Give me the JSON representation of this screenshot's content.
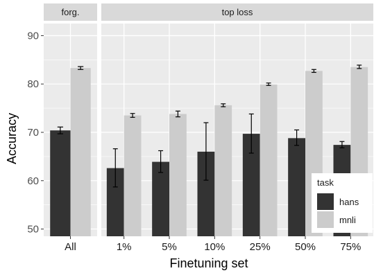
{
  "chart_data": {
    "type": "bar",
    "xlabel": "Finetuning set",
    "ylabel": "Accuracy",
    "ylim": [
      48.5,
      92.5
    ],
    "yticks": [
      50,
      60,
      70,
      80,
      90
    ],
    "grid": true,
    "legend": {
      "title": "task",
      "placement": "bottom-right",
      "entries": [
        {
          "name": "hans",
          "color": "#333333"
        },
        {
          "name": "mnli",
          "color": "#cccccc"
        }
      ]
    },
    "facets": [
      {
        "label": "forg.",
        "categories": [
          "All"
        ],
        "series": [
          {
            "name": "hans",
            "values": [
              70.4
            ],
            "err_low": [
              69.7
            ],
            "err_high": [
              71.1
            ]
          },
          {
            "name": "mnli",
            "values": [
              83.3
            ],
            "err_low": [
              83.0
            ],
            "err_high": [
              83.6
            ]
          }
        ]
      },
      {
        "label": "top loss",
        "categories": [
          "1%",
          "5%",
          "10%",
          "25%",
          "50%",
          "75%"
        ],
        "series": [
          {
            "name": "hans",
            "values": [
              62.6,
              63.9,
              66.0,
              69.7,
              68.8,
              67.4
            ],
            "err_low": [
              58.7,
              61.7,
              60.1,
              65.7,
              67.3,
              66.8
            ],
            "err_high": [
              66.6,
              66.2,
              72.0,
              73.8,
              70.5,
              68.1
            ]
          },
          {
            "name": "mnli",
            "values": [
              73.5,
              73.8,
              75.6,
              79.9,
              82.7,
              83.5
            ],
            "err_low": [
              73.1,
              73.2,
              75.3,
              79.7,
              82.4,
              83.2
            ],
            "err_high": [
              73.9,
              74.4,
              75.9,
              80.2,
              83.0,
              83.9
            ]
          }
        ]
      }
    ]
  }
}
